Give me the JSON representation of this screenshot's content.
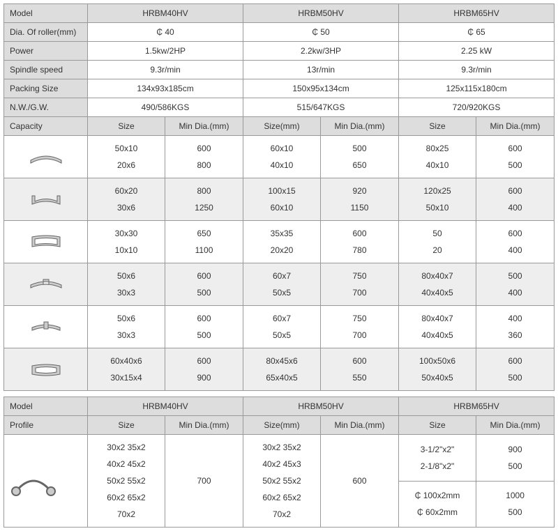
{
  "columns": {
    "label_width": 120,
    "model_width": 223
  },
  "labels": {
    "model": "Model",
    "dia_roller": "Dia. Of roller(mm)",
    "power": "Power",
    "spindle_speed": "Spindle speed",
    "packing_size": "Packing Size",
    "nwgw": "N.W./G.W.",
    "capacity": "Capacity",
    "size": "Size",
    "size_mm": "Size(mm)",
    "min_dia": "Min Dia.(mm)",
    "profile": "Profile"
  },
  "models": [
    "HRBM40HV",
    "HRBM50HV",
    "HRBM65HV"
  ],
  "specs": {
    "dia_roller": [
      "₵ 40",
      "₵ 50",
      "₵ 65"
    ],
    "power": [
      "1.5kw/2HP",
      "2.2kw/3HP",
      "2.25 kW"
    ],
    "spindle_speed": [
      "9.3r/min",
      "13r/min",
      "9.3r/min"
    ],
    "packing_size": [
      "134x93x185cm",
      "150x95x134cm",
      "125x115x180cm"
    ],
    "nwgw": [
      "490/586KGS",
      "515/647KGS",
      "720/920KGS"
    ]
  },
  "capacity_rows": [
    {
      "icon": "flat-bar",
      "alt": false,
      "data": [
        [
          "50x10",
          "600",
          "60x10",
          "500",
          "80x25",
          "600"
        ],
        [
          "20x6",
          "800",
          "40x10",
          "650",
          "40x10",
          "500"
        ]
      ]
    },
    {
      "icon": "channel",
      "alt": true,
      "data": [
        [
          "60x20",
          "800",
          "100x15",
          "920",
          "120x25",
          "600"
        ],
        [
          "30x6",
          "1250",
          "60x10",
          "1150",
          "50x10",
          "400"
        ]
      ]
    },
    {
      "icon": "square-tube",
      "alt": false,
      "data": [
        [
          "30x30",
          "650",
          "35x35",
          "600",
          "50",
          "600"
        ],
        [
          "10x10",
          "1100",
          "20x20",
          "780",
          "20",
          "400"
        ]
      ]
    },
    {
      "icon": "angle",
      "alt": true,
      "data": [
        [
          "50x6",
          "600",
          "60x7",
          "750",
          "80x40x7",
          "500"
        ],
        [
          "30x3",
          "500",
          "50x5",
          "700",
          "40x40x5",
          "400"
        ]
      ]
    },
    {
      "icon": "tee",
      "alt": false,
      "data": [
        [
          "50x6",
          "600",
          "60x7",
          "750",
          "80x40x7",
          "400"
        ],
        [
          "30x3",
          "500",
          "50x5",
          "700",
          "40x40x5",
          "360"
        ]
      ]
    },
    {
      "icon": "rect-tube",
      "alt": true,
      "data": [
        [
          "60x40x6",
          "600",
          "80x45x6",
          "600",
          "100x50x6",
          "600"
        ],
        [
          "30x15x4",
          "900",
          "65x40x5",
          "550",
          "50x40x5",
          "500"
        ]
      ]
    }
  ],
  "profile": {
    "col1_sizes": "30x2 35x2\n40x2 45x2\n50x2 55x2\n60x2 65x2\n70x2",
    "col1_min": "700",
    "col2_sizes": "30x2 35x2\n40x2 45x3\n50x2 55x2\n60x2 65x2\n70x2",
    "col2_min": "600",
    "col3a_sizes": "3-1/2\"x2\"\n2-1/8\"x2\"",
    "col3a_min": "900\n500",
    "col3b_sizes": "₵ 100x2mm\n₵ 60x2mm",
    "col3b_min": "1000\n500"
  },
  "colors": {
    "header_bg": "#dddddd",
    "alt_bg": "#eeeeee",
    "border": "#999999",
    "icon_stroke": "#666666",
    "icon_fill": "#cccccc"
  }
}
